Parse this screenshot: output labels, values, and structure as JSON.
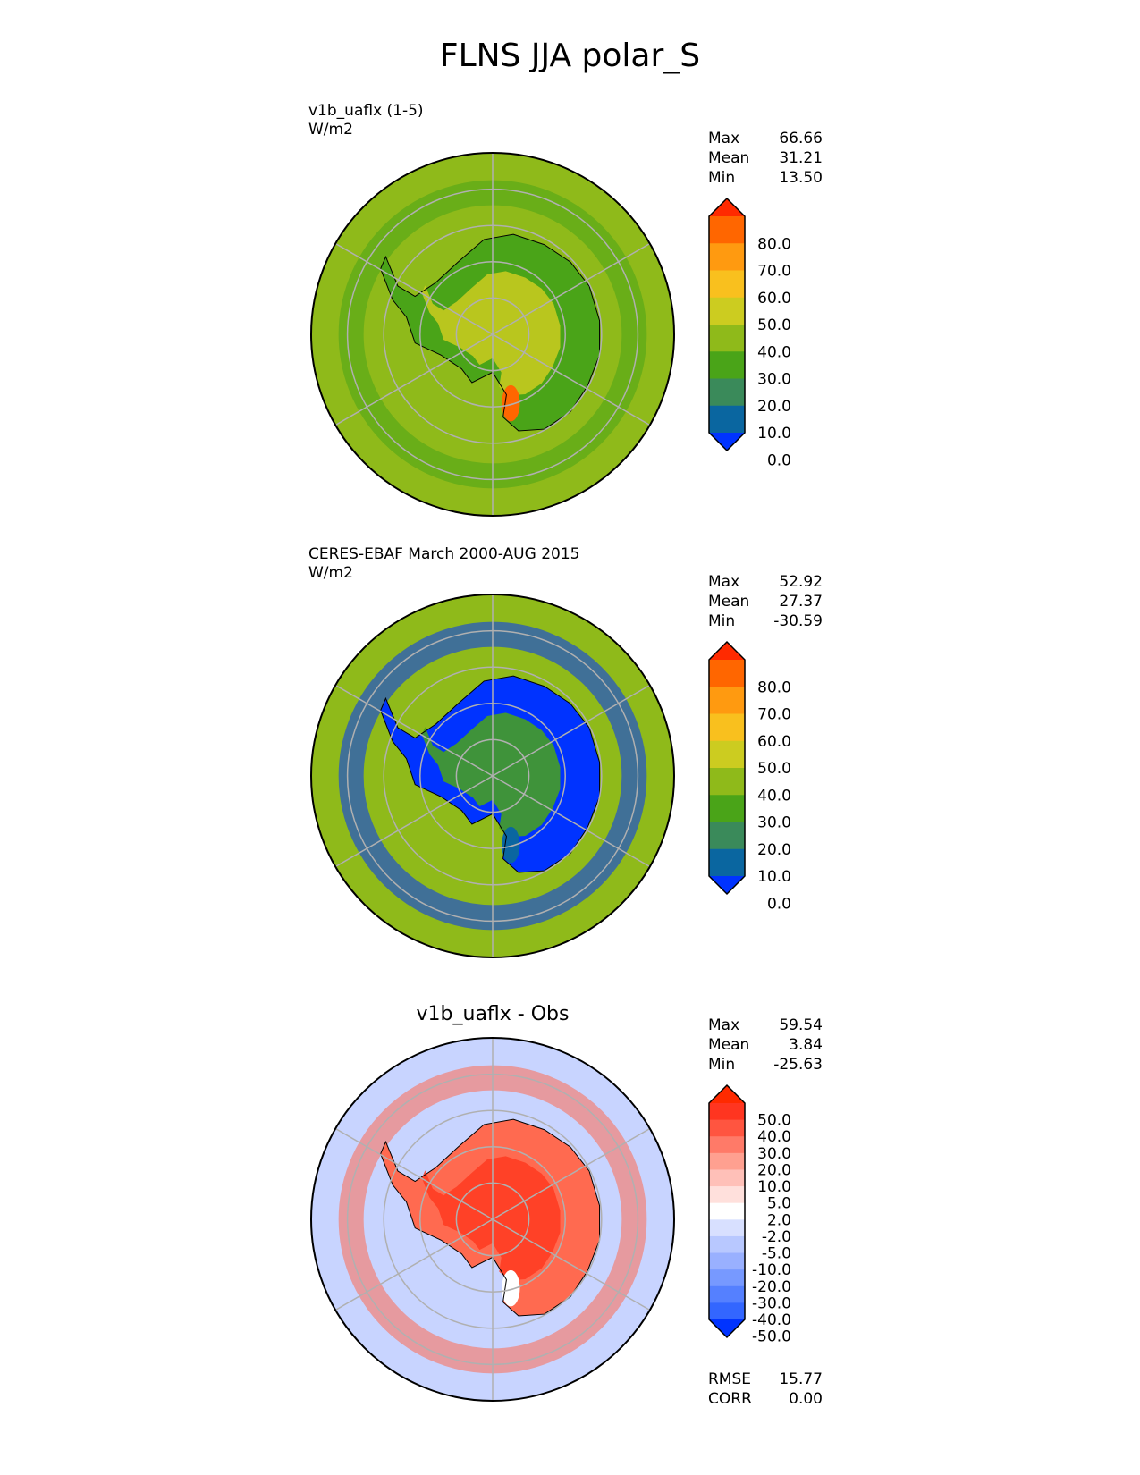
{
  "figure": {
    "title": "FLNS JJA polar_S"
  },
  "panels": [
    {
      "id": "test",
      "title_lines": [
        "v1b_uaflx (1-5)",
        "W/m2"
      ],
      "centered_title": "",
      "stats": [
        {
          "label": "Max",
          "value": "66.66"
        },
        {
          "label": "Mean",
          "value": "31.21"
        },
        {
          "label": "Min",
          "value": "13.50"
        }
      ],
      "colorbar": {
        "labels": [
          "80.0",
          "70.0",
          "60.0",
          "50.0",
          "40.0",
          "30.0",
          "20.0",
          "10.0",
          "0.0"
        ],
        "colors": [
          "#0033ff",
          "#0a66a0",
          "#3a8a5a",
          "#4aa418",
          "#8fba1a",
          "#cccc20",
          "#f9c01e",
          "#ff9a10",
          "#ff6600",
          "#ff2a00"
        ]
      },
      "map": {
        "background": "#8fba1a",
        "continent_fill": "#4aa418",
        "interior_fill": "#cccc20",
        "hotspot": "#ff6600"
      },
      "footer": []
    },
    {
      "id": "obs",
      "title_lines": [
        "CERES-EBAF March 2000-AUG 2015",
        "W/m2"
      ],
      "centered_title": "",
      "stats": [
        {
          "label": "Max",
          "value": "52.92"
        },
        {
          "label": "Mean",
          "value": "27.37"
        },
        {
          "label": "Min",
          "value": "-30.59"
        }
      ],
      "colorbar": {
        "labels": [
          "80.0",
          "70.0",
          "60.0",
          "50.0",
          "40.0",
          "30.0",
          "20.0",
          "10.0",
          "0.0"
        ],
        "colors": [
          "#0033ff",
          "#0a66a0",
          "#3a8a5a",
          "#4aa418",
          "#8fba1a",
          "#cccc20",
          "#f9c01e",
          "#ff9a10",
          "#ff6600",
          "#ff2a00"
        ]
      },
      "map": {
        "background": "#8fba1a",
        "continent_fill": "#0033ff",
        "interior_fill": "#4aa418",
        "hotspot": "#0a66a0"
      },
      "footer": []
    },
    {
      "id": "diff",
      "title_lines": [],
      "centered_title": "v1b_uaflx - Obs",
      "stats": [
        {
          "label": "Max",
          "value": "59.54"
        },
        {
          "label": "Mean",
          "value": "3.84"
        },
        {
          "label": "Min",
          "value": "-25.63"
        }
      ],
      "colorbar": {
        "labels": [
          "50.0",
          "40.0",
          "30.0",
          "20.0",
          "10.0",
          "5.0",
          "2.0",
          "-2.0",
          "-5.0",
          "-10.0",
          "-20.0",
          "-30.0",
          "-40.0",
          "-50.0"
        ],
        "colors": [
          "#0033ff",
          "#3366ff",
          "#5580ff",
          "#7799ff",
          "#99b0ff",
          "#b8c8ff",
          "#d8e0ff",
          "#ffffff",
          "#ffe0dc",
          "#ffc0b8",
          "#ffa090",
          "#ff7a68",
          "#ff5540",
          "#ff3520",
          "#ff2a00"
        ]
      },
      "map": {
        "background": "#c8d4ff",
        "continent_fill": "#ff6a50",
        "interior_fill": "#ff3a20",
        "hotspot": "#ffffff"
      },
      "footer": [
        {
          "label": "RMSE",
          "value": "15.77"
        },
        {
          "label": "CORR",
          "value": "0.00"
        }
      ]
    }
  ]
}
